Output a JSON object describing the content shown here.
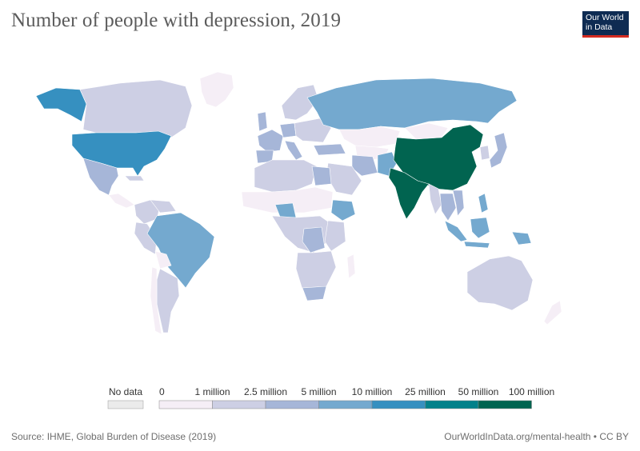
{
  "title": "Number of people with depression, 2019",
  "logo": {
    "line1": "Our World",
    "line2": "in Data"
  },
  "legend": {
    "no_data_label": "No data",
    "no_data_color": "#ebebeb",
    "bins": [
      {
        "label": "0",
        "color": "#f5eef6"
      },
      {
        "label": "1 million",
        "color": "#cdcfe4"
      },
      {
        "label": "2.5 million",
        "color": "#a6b6d8"
      },
      {
        "label": "5 million",
        "color": "#74a9cf"
      },
      {
        "label": "10 million",
        "color": "#3690c0"
      },
      {
        "label": "25 million",
        "color": "#02818a"
      },
      {
        "label": "50 million",
        "color": "#016450"
      },
      {
        "label": "100 million",
        "color": null
      }
    ]
  },
  "footer": {
    "source": "Source: IHME, Global Burden of Disease (2019)",
    "url": "OurWorldInData.org/mental-health • CC BY"
  }
}
